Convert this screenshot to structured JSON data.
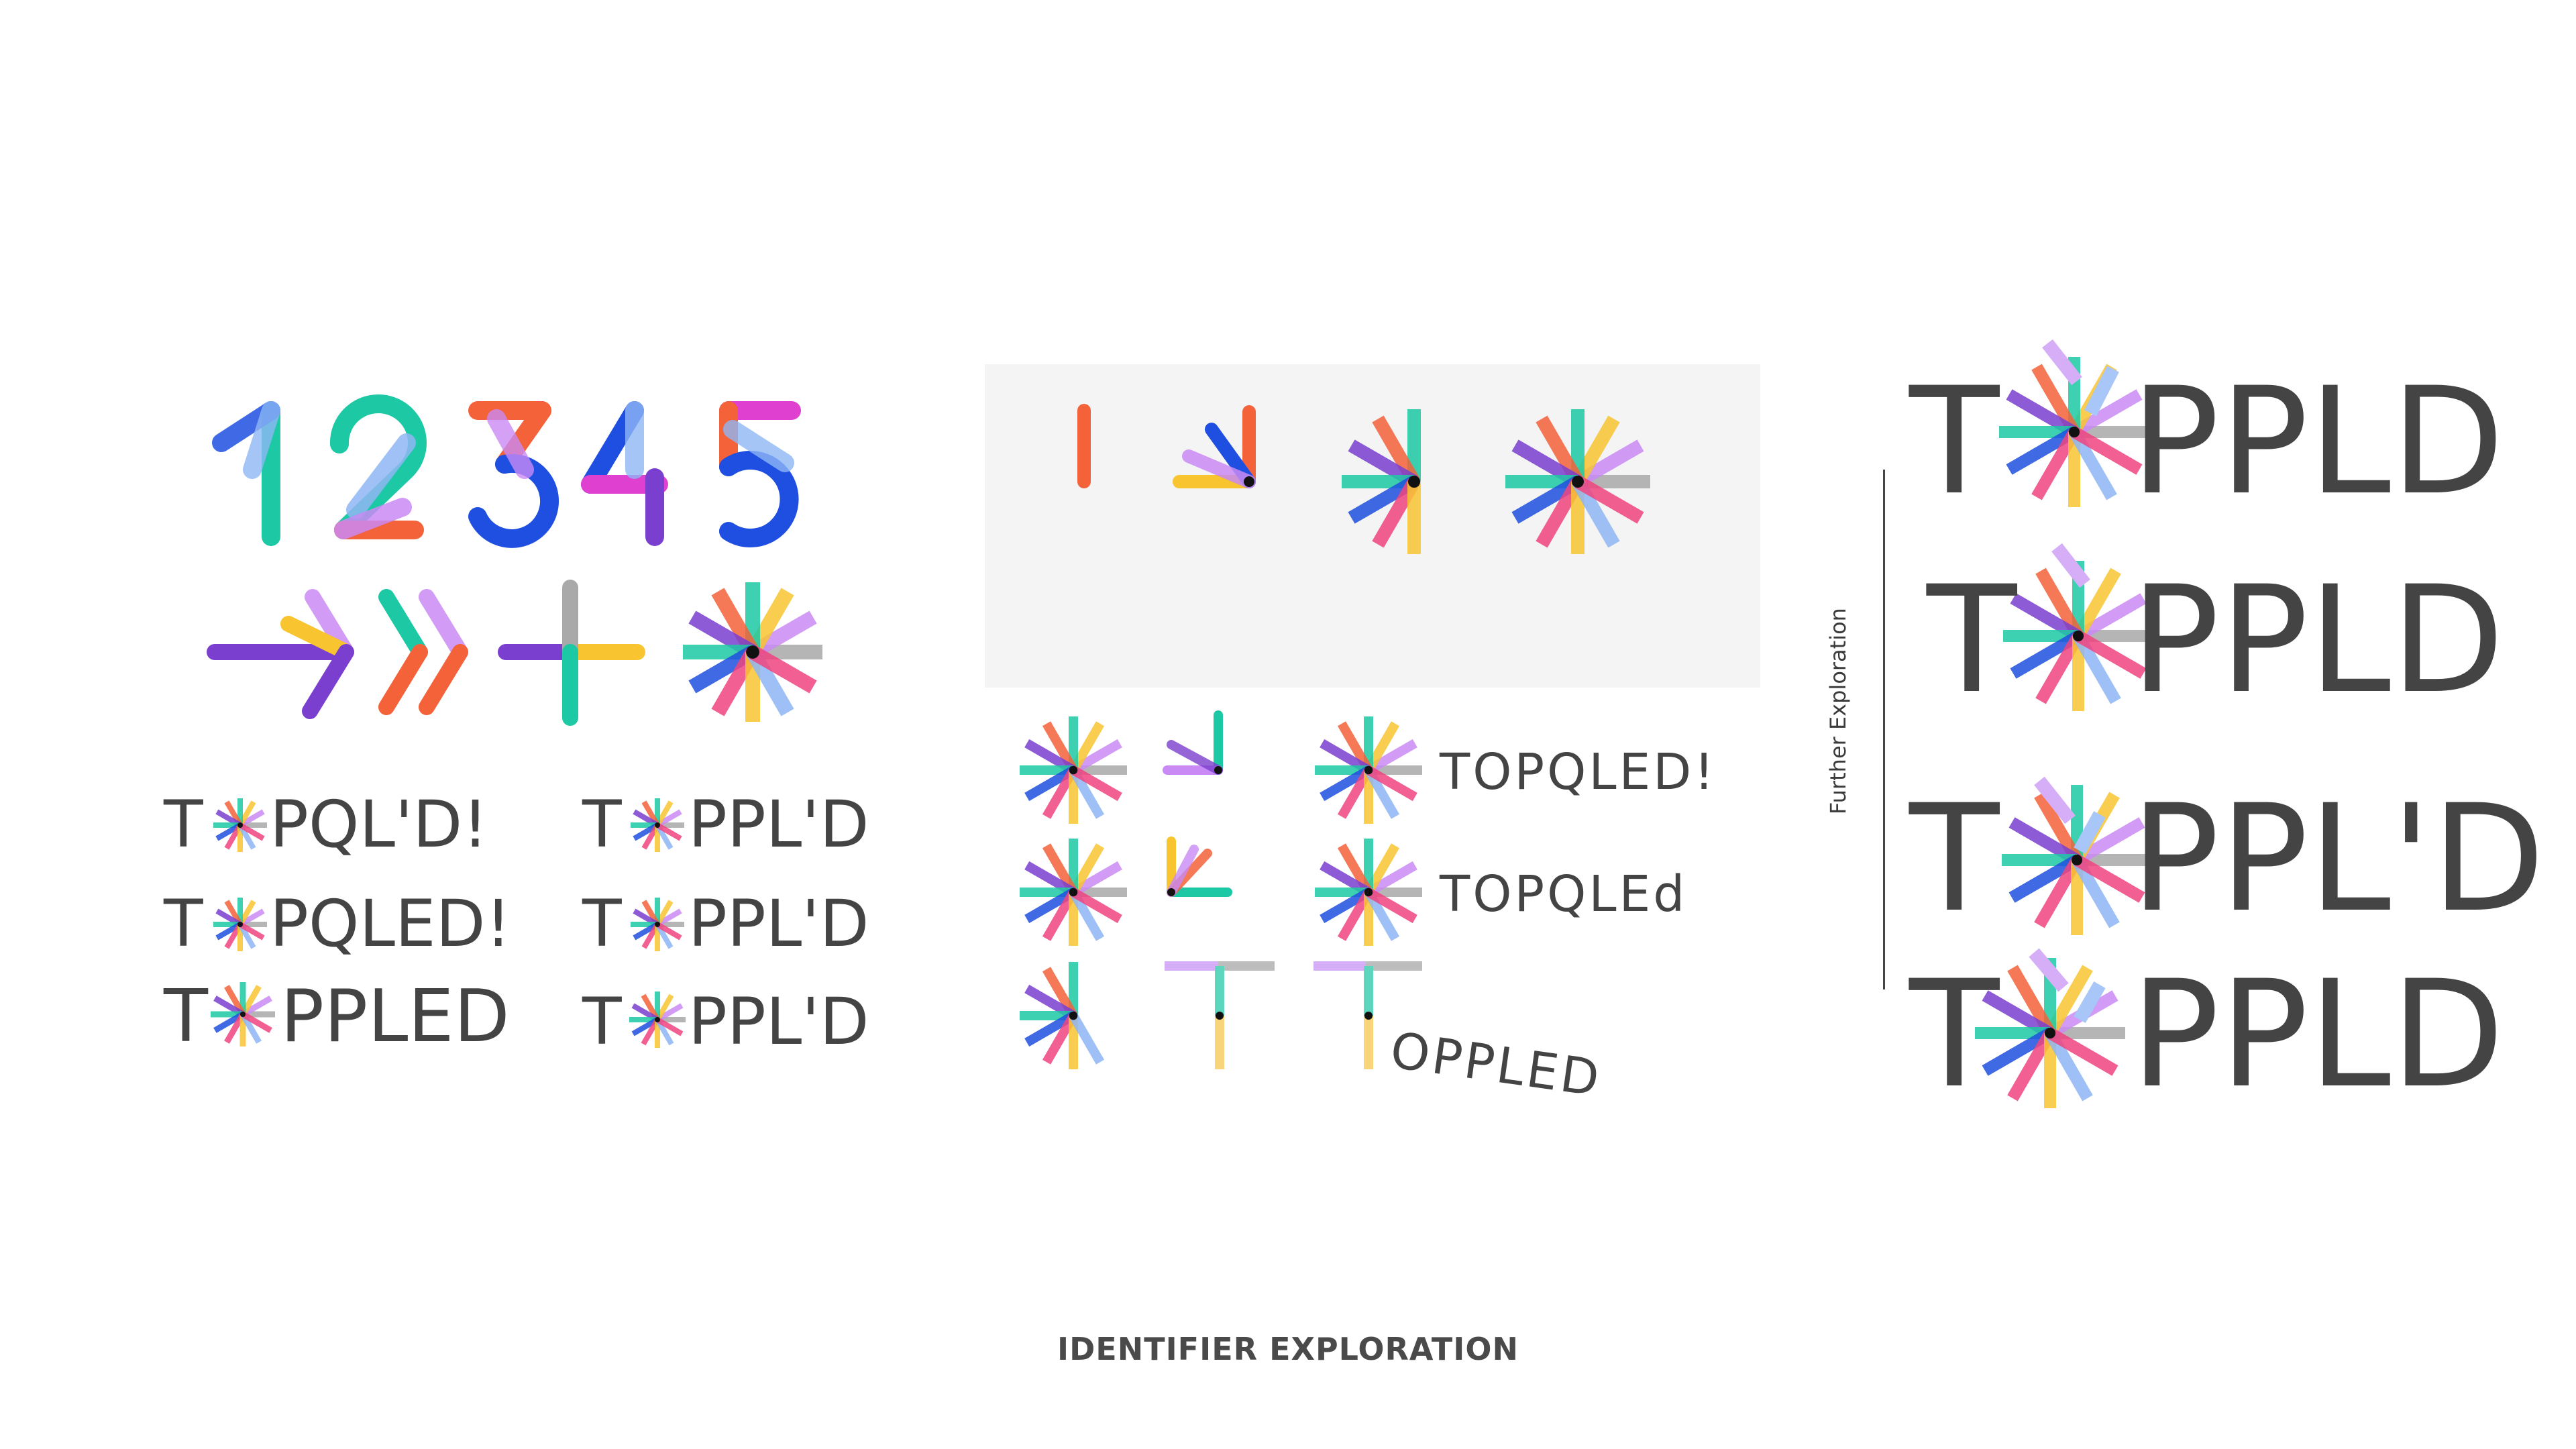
{
  "caption": "IDENTIFIER EXPLORATION",
  "further_label": "Further Exploration",
  "digits": [
    "1",
    "2",
    "3",
    "4",
    "5"
  ],
  "left_words": {
    "col1": [
      "T",
      "PQL'D!",
      "T",
      "PQLED!",
      "T",
      "PPLED"
    ],
    "col2": [
      "T",
      "PPL'D",
      "T",
      "PPL'D",
      "T",
      "PPL'D"
    ]
  },
  "mid_words": {
    "w1": "TOPQLED!",
    "w2": "TOPQLEd",
    "w3": "OPPLED"
  },
  "right_words": {
    "r1_t": "T",
    "r1_rest": "PPLD",
    "r2_t": "T",
    "r2_rest": "PPLD",
    "r3_t": "T",
    "r3_rest": "PPL'D",
    "r4_t": "T",
    "r4_rest": "PPLD"
  },
  "palette": {
    "blue": "#1f4fe0",
    "teal": "#1dc9a4",
    "orange": "#f4623a",
    "pink": "#f0447f",
    "purple": "#7b3fcf",
    "lilac": "#c98af5",
    "lightblue": "#8fb6f5",
    "yellow": "#f8c531",
    "gray": "#a9a9a9",
    "magenta": "#e040d0",
    "ink": "#444444"
  }
}
